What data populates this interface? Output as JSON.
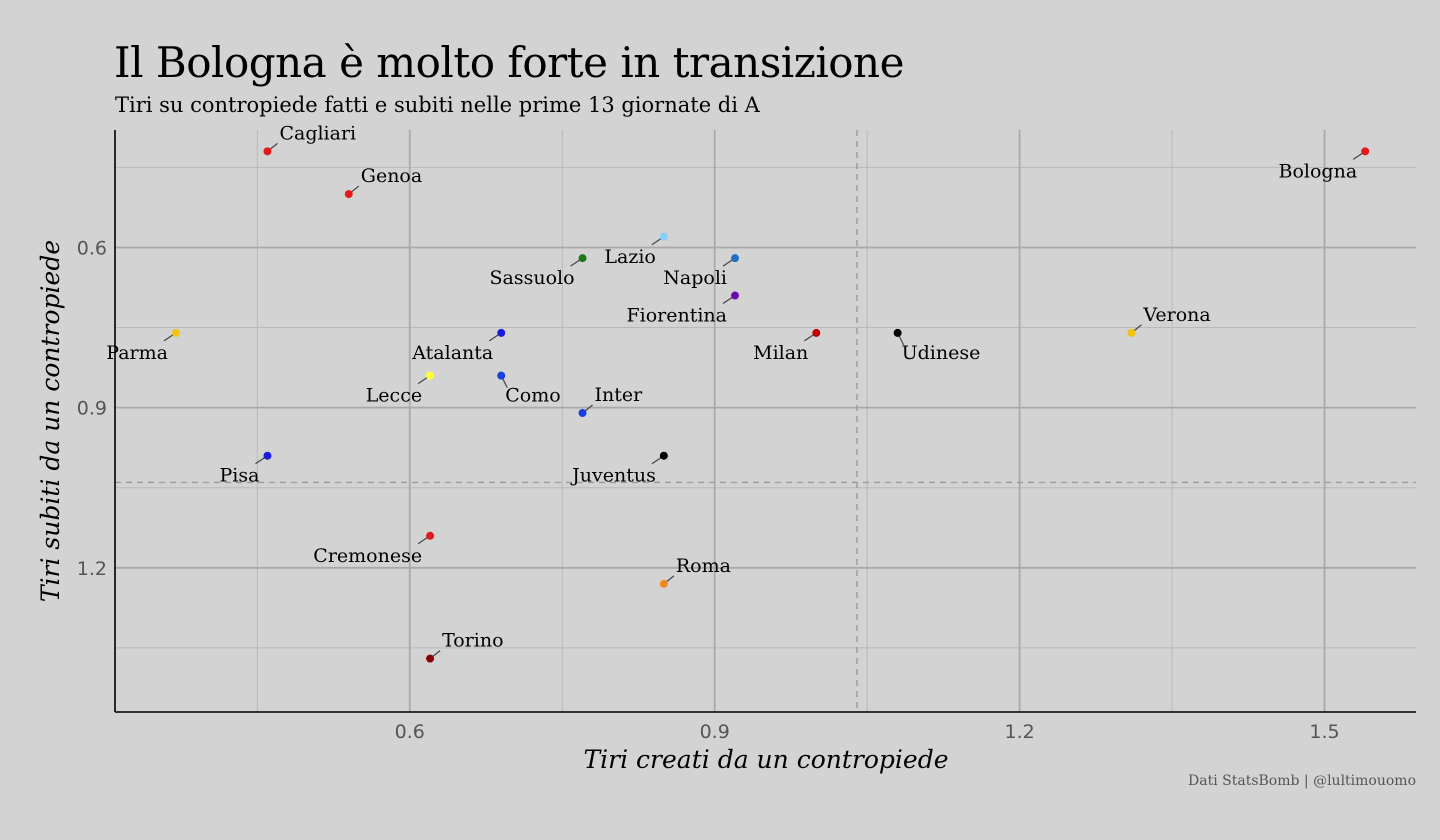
{
  "title": "Il Bologna è molto forte in transizione",
  "subtitle": "Tiri su contropiede fatti e subiti nelle prime 13 giornate di A",
  "caption": "Dati StatsBomb | @lultimouomo",
  "chart_data": {
    "type": "scatter",
    "xlabel": "Tiri creati da un contropiede",
    "ylabel": "Tiri subiti da un contropiede",
    "xlim": [
      0.31,
      1.59
    ],
    "ylim": [
      0.38,
      1.47
    ],
    "y_reversed": true,
    "xticks": [
      0.6,
      0.9,
      1.2,
      1.5
    ],
    "yticks": [
      0.6,
      0.9,
      1.2
    ],
    "xtick_labels": [
      "0.6",
      "0.9",
      "1.2",
      "1.5"
    ],
    "ytick_labels": [
      "0.6",
      "0.9",
      "1.2"
    ],
    "x_reference": 1.04,
    "y_reference": 1.04,
    "grid": true,
    "points": [
      {
        "team": "Cagliari",
        "x": 0.46,
        "y": 0.42,
        "color": "#e31a1c",
        "pos": "ur"
      },
      {
        "team": "Genoa",
        "x": 0.54,
        "y": 0.5,
        "color": "#e31a1c",
        "pos": "ur"
      },
      {
        "team": "Lazio",
        "x": 0.85,
        "y": 0.58,
        "color": "#87cefa",
        "pos": "ll"
      },
      {
        "team": "Sassuolo",
        "x": 0.77,
        "y": 0.62,
        "color": "#1a7a1a",
        "pos": "ll"
      },
      {
        "team": "Napoli",
        "x": 0.92,
        "y": 0.62,
        "color": "#1f6fc4",
        "pos": "ll"
      },
      {
        "team": "Fiorentina",
        "x": 0.92,
        "y": 0.69,
        "color": "#6a0dad",
        "pos": "ll"
      },
      {
        "team": "Parma",
        "x": 0.37,
        "y": 0.76,
        "color": "#f2c40f",
        "pos": "ll"
      },
      {
        "team": "Atalanta",
        "x": 0.69,
        "y": 0.76,
        "color": "#1a1adc",
        "pos": "ll"
      },
      {
        "team": "Milan",
        "x": 1.0,
        "y": 0.76,
        "color": "#c00000",
        "pos": "ll"
      },
      {
        "team": "Udinese",
        "x": 1.08,
        "y": 0.76,
        "color": "#000000",
        "pos": "lr"
      },
      {
        "team": "Verona",
        "x": 1.31,
        "y": 0.76,
        "color": "#f2c40f",
        "pos": "ur"
      },
      {
        "team": "Lecce",
        "x": 0.62,
        "y": 0.84,
        "color": "#ffff33",
        "pos": "ll"
      },
      {
        "team": "Como",
        "x": 0.69,
        "y": 0.84,
        "color": "#1a3fe0",
        "pos": "lr"
      },
      {
        "team": "Inter",
        "x": 0.77,
        "y": 0.91,
        "color": "#1a3fe0",
        "pos": "ur"
      },
      {
        "team": "Pisa",
        "x": 0.46,
        "y": 0.99,
        "color": "#1a1adc",
        "pos": "ll"
      },
      {
        "team": "Juventus",
        "x": 0.85,
        "y": 0.99,
        "color": "#000000",
        "pos": "ll"
      },
      {
        "team": "Cremonese",
        "x": 0.62,
        "y": 1.14,
        "color": "#e31a1c",
        "pos": "ll"
      },
      {
        "team": "Roma",
        "x": 0.85,
        "y": 1.23,
        "color": "#f08a1c",
        "pos": "ur"
      },
      {
        "team": "Torino",
        "x": 0.62,
        "y": 1.37,
        "color": "#8b0000",
        "pos": "ur"
      },
      {
        "team": "Bologna",
        "x": 1.54,
        "y": 0.42,
        "color": "#e31a1c",
        "pos": "ll"
      }
    ]
  }
}
